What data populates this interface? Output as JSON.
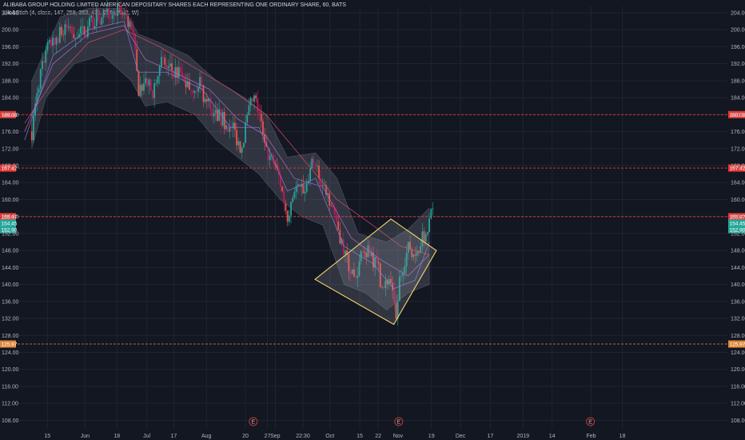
{
  "header": {
    "title": "ALIBABA GROUP HOLDING LIMITED AMERICAN DEPOSITARY SHARES EACH REPRESENTING ONE ORDINARY SHARE, 60, BATS",
    "indicator": "Lilo&Stich (4, close, 147, 258, 369, 471, 206, 20, 2, W)"
  },
  "colors": {
    "background": "#131722",
    "grid": "#1f2433",
    "up": "#26a69a",
    "down": "#ef5350",
    "candle_dark": "#c2185b",
    "hline_red": "#e53935",
    "hline_orange": "#e0883c",
    "pattern": "#f3d36b",
    "band": "#7d8290",
    "earnings": "#c0392b"
  },
  "chart_data": {
    "type": "candlestick",
    "title": "ALIBABA GROUP HOLDING LIMITED AMERICAN DEPOSITARY SHARES EACH REPRESENTING ONE ORDINARY SHARE, 60, BATS",
    "interval": "60",
    "ylim": [
      106,
      205.5
    ],
    "y_ticks": [
      108,
      112,
      116,
      120,
      124,
      128,
      132,
      136,
      140,
      144,
      148,
      152,
      156,
      160,
      164,
      168,
      172,
      176,
      180,
      184,
      188,
      192,
      196,
      200,
      204
    ],
    "y_tick_labels": [
      "108.00",
      "112.00",
      "116.00",
      "120.00",
      "124.00",
      "128.00",
      "132.00",
      "136.00",
      "140.00",
      "144.00",
      "148.00",
      "152.00",
      "156.00",
      "160.00",
      "164.00",
      "168.00",
      "172.00",
      "176.00",
      "180.00",
      "184.00",
      "188.00",
      "192.00",
      "196.00",
      "200.00",
      "204.00"
    ],
    "x_domain": [
      0,
      100
    ],
    "x_ticks": [
      {
        "label": "15",
        "x": 4.2
      },
      {
        "label": "Jun",
        "x": 9.5
      },
      {
        "label": "18",
        "x": 14.0
      },
      {
        "label": "Jul",
        "x": 18.2
      },
      {
        "label": "17",
        "x": 22.0
      },
      {
        "label": "Aug",
        "x": 26.6
      },
      {
        "label": "20",
        "x": 32.1
      },
      {
        "label": "27",
        "x": 35.2
      },
      {
        "label": "Sep",
        "x": 36.3
      },
      {
        "label": "22:30",
        "x": 40.2
      },
      {
        "label": "Oct",
        "x": 44.0
      },
      {
        "label": "15",
        "x": 48.2
      },
      {
        "label": "22",
        "x": 50.8
      },
      {
        "label": "Nov",
        "x": 53.6
      },
      {
        "label": "19",
        "x": 58.3
      },
      {
        "label": "Dec",
        "x": 62.4
      },
      {
        "label": "17",
        "x": 66.6
      },
      {
        "label": "2019",
        "x": 71.2
      },
      {
        "label": "14",
        "x": 75.3
      },
      {
        "label": "Feb",
        "x": 80.8
      },
      {
        "label": "18",
        "x": 85.2
      }
    ],
    "horizontal_lines": [
      {
        "value": 180.0,
        "label": "180.00",
        "color": "#e53935",
        "style": "dashed"
      },
      {
        "value": 167.42,
        "label": "167.42",
        "color": "#e53935",
        "style": "dashed"
      },
      {
        "value": 155.97,
        "label": "155.97",
        "color": "#e53935",
        "style": "dashed"
      },
      {
        "value": 125.97,
        "label": "125.97",
        "color": "#e0883c",
        "style": "dashed"
      }
    ],
    "price_badges": [
      {
        "value": 154.45,
        "label": "154.45",
        "color": "#26a69a"
      },
      {
        "value": 152.9,
        "label": "152.90",
        "color": "#26a69a"
      }
    ],
    "pattern_polygon": [
      {
        "x": 41.9,
        "y": 141.2
      },
      {
        "x": 52.6,
        "y": 155.4
      },
      {
        "x": 59.0,
        "y": 148.0
      },
      {
        "x": 53.0,
        "y": 130.6
      }
    ],
    "earnings_markers": [
      {
        "x": 33.2,
        "label": "E"
      },
      {
        "x": 53.7,
        "label": "E"
      },
      {
        "x": 80.7,
        "label": "E"
      }
    ],
    "price_path": [
      {
        "x": 2.0,
        "y": 176
      },
      {
        "x": 3.5,
        "y": 193
      },
      {
        "x": 5.0,
        "y": 198
      },
      {
        "x": 7.0,
        "y": 200
      },
      {
        "x": 9.0,
        "y": 199
      },
      {
        "x": 11.0,
        "y": 203
      },
      {
        "x": 13.0,
        "y": 203
      },
      {
        "x": 14.5,
        "y": 204
      },
      {
        "x": 15.5,
        "y": 203
      },
      {
        "x": 16.3,
        "y": 198
      },
      {
        "x": 17.0,
        "y": 186
      },
      {
        "x": 18.0,
        "y": 188
      },
      {
        "x": 19.0,
        "y": 185
      },
      {
        "x": 20.0,
        "y": 193
      },
      {
        "x": 21.0,
        "y": 191
      },
      {
        "x": 22.5,
        "y": 190
      },
      {
        "x": 23.5,
        "y": 188
      },
      {
        "x": 24.5,
        "y": 186
      },
      {
        "x": 25.5,
        "y": 188
      },
      {
        "x": 26.5,
        "y": 183
      },
      {
        "x": 28.0,
        "y": 180
      },
      {
        "x": 29.5,
        "y": 178
      },
      {
        "x": 30.5,
        "y": 176
      },
      {
        "x": 31.5,
        "y": 172
      },
      {
        "x": 32.5,
        "y": 180
      },
      {
        "x": 33.2,
        "y": 184
      },
      {
        "x": 34.0,
        "y": 181
      },
      {
        "x": 34.8,
        "y": 172
      },
      {
        "x": 35.5,
        "y": 170
      },
      {
        "x": 36.3,
        "y": 168
      },
      {
        "x": 37.0,
        "y": 164
      },
      {
        "x": 38.0,
        "y": 156
      },
      {
        "x": 39.0,
        "y": 163
      },
      {
        "x": 40.0,
        "y": 162
      },
      {
        "x": 40.8,
        "y": 163
      },
      {
        "x": 41.5,
        "y": 168
      },
      {
        "x": 42.5,
        "y": 166
      },
      {
        "x": 43.5,
        "y": 162
      },
      {
        "x": 44.5,
        "y": 158
      },
      {
        "x": 45.5,
        "y": 151
      },
      {
        "x": 46.5,
        "y": 145
      },
      {
        "x": 47.5,
        "y": 141
      },
      {
        "x": 48.3,
        "y": 146
      },
      {
        "x": 49.0,
        "y": 148
      },
      {
        "x": 50.0,
        "y": 146
      },
      {
        "x": 50.8,
        "y": 144
      },
      {
        "x": 51.5,
        "y": 138
      },
      {
        "x": 52.2,
        "y": 142
      },
      {
        "x": 52.8,
        "y": 137
      },
      {
        "x": 53.3,
        "y": 131
      },
      {
        "x": 53.8,
        "y": 141
      },
      {
        "x": 54.5,
        "y": 146
      },
      {
        "x": 55.2,
        "y": 149
      },
      {
        "x": 56.0,
        "y": 147
      },
      {
        "x": 56.8,
        "y": 150
      },
      {
        "x": 57.5,
        "y": 152
      },
      {
        "x": 58.0,
        "y": 155
      },
      {
        "x": 58.5,
        "y": 157
      }
    ],
    "ma_paths": [
      {
        "color": "#d64e6a",
        "points": [
          {
            "x": 1,
            "y": 178
          },
          {
            "x": 5,
            "y": 188
          },
          {
            "x": 10,
            "y": 197
          },
          {
            "x": 15,
            "y": 200
          },
          {
            "x": 20,
            "y": 196
          },
          {
            "x": 25,
            "y": 191
          },
          {
            "x": 30,
            "y": 186
          },
          {
            "x": 35,
            "y": 180
          },
          {
            "x": 40,
            "y": 170
          },
          {
            "x": 45,
            "y": 160
          },
          {
            "x": 50,
            "y": 154
          },
          {
            "x": 54,
            "y": 149
          },
          {
            "x": 58,
            "y": 147
          }
        ]
      },
      {
        "color": "#b06fc7",
        "points": [
          {
            "x": 1,
            "y": 176
          },
          {
            "x": 5,
            "y": 192
          },
          {
            "x": 10,
            "y": 199
          },
          {
            "x": 15,
            "y": 201
          },
          {
            "x": 18,
            "y": 193
          },
          {
            "x": 22,
            "y": 190
          },
          {
            "x": 27,
            "y": 186
          },
          {
            "x": 31,
            "y": 179
          },
          {
            "x": 35,
            "y": 175
          },
          {
            "x": 39,
            "y": 165
          },
          {
            "x": 43,
            "y": 163
          },
          {
            "x": 47,
            "y": 151
          },
          {
            "x": 51,
            "y": 146
          },
          {
            "x": 55,
            "y": 142
          },
          {
            "x": 58,
            "y": 147
          }
        ]
      },
      {
        "color": "#8a7fd9",
        "points": [
          {
            "x": 1,
            "y": 174
          },
          {
            "x": 5,
            "y": 194
          },
          {
            "x": 10,
            "y": 200
          },
          {
            "x": 15,
            "y": 202
          },
          {
            "x": 17,
            "y": 190
          },
          {
            "x": 21,
            "y": 190
          },
          {
            "x": 26,
            "y": 186
          },
          {
            "x": 30,
            "y": 177
          },
          {
            "x": 34,
            "y": 177
          },
          {
            "x": 38,
            "y": 162
          },
          {
            "x": 42,
            "y": 165
          },
          {
            "x": 46,
            "y": 149
          },
          {
            "x": 50,
            "y": 145
          },
          {
            "x": 53,
            "y": 139
          },
          {
            "x": 56,
            "y": 141
          },
          {
            "x": 58,
            "y": 150
          }
        ]
      }
    ],
    "band_upper": [
      {
        "x": 2,
        "y": 188
      },
      {
        "x": 6,
        "y": 203
      },
      {
        "x": 10,
        "y": 205
      },
      {
        "x": 15,
        "y": 205
      },
      {
        "x": 17,
        "y": 199
      },
      {
        "x": 20,
        "y": 197
      },
      {
        "x": 24,
        "y": 194
      },
      {
        "x": 28,
        "y": 188
      },
      {
        "x": 32,
        "y": 184
      },
      {
        "x": 35,
        "y": 180
      },
      {
        "x": 38,
        "y": 170
      },
      {
        "x": 42,
        "y": 171
      },
      {
        "x": 45,
        "y": 165
      },
      {
        "x": 48,
        "y": 152
      },
      {
        "x": 52,
        "y": 150
      },
      {
        "x": 55,
        "y": 153
      },
      {
        "x": 58,
        "y": 158
      }
    ],
    "band_lower": [
      {
        "x": 58,
        "y": 140
      },
      {
        "x": 55,
        "y": 138
      },
      {
        "x": 52,
        "y": 134
      },
      {
        "x": 49,
        "y": 138
      },
      {
        "x": 46,
        "y": 140
      },
      {
        "x": 43,
        "y": 154
      },
      {
        "x": 40,
        "y": 156
      },
      {
        "x": 37,
        "y": 160
      },
      {
        "x": 34,
        "y": 166
      },
      {
        "x": 31,
        "y": 170
      },
      {
        "x": 28,
        "y": 174
      },
      {
        "x": 25,
        "y": 180
      },
      {
        "x": 21,
        "y": 183
      },
      {
        "x": 18,
        "y": 182
      },
      {
        "x": 16,
        "y": 188
      },
      {
        "x": 12,
        "y": 194
      },
      {
        "x": 8,
        "y": 192
      },
      {
        "x": 4,
        "y": 184
      },
      {
        "x": 2,
        "y": 172
      }
    ]
  }
}
